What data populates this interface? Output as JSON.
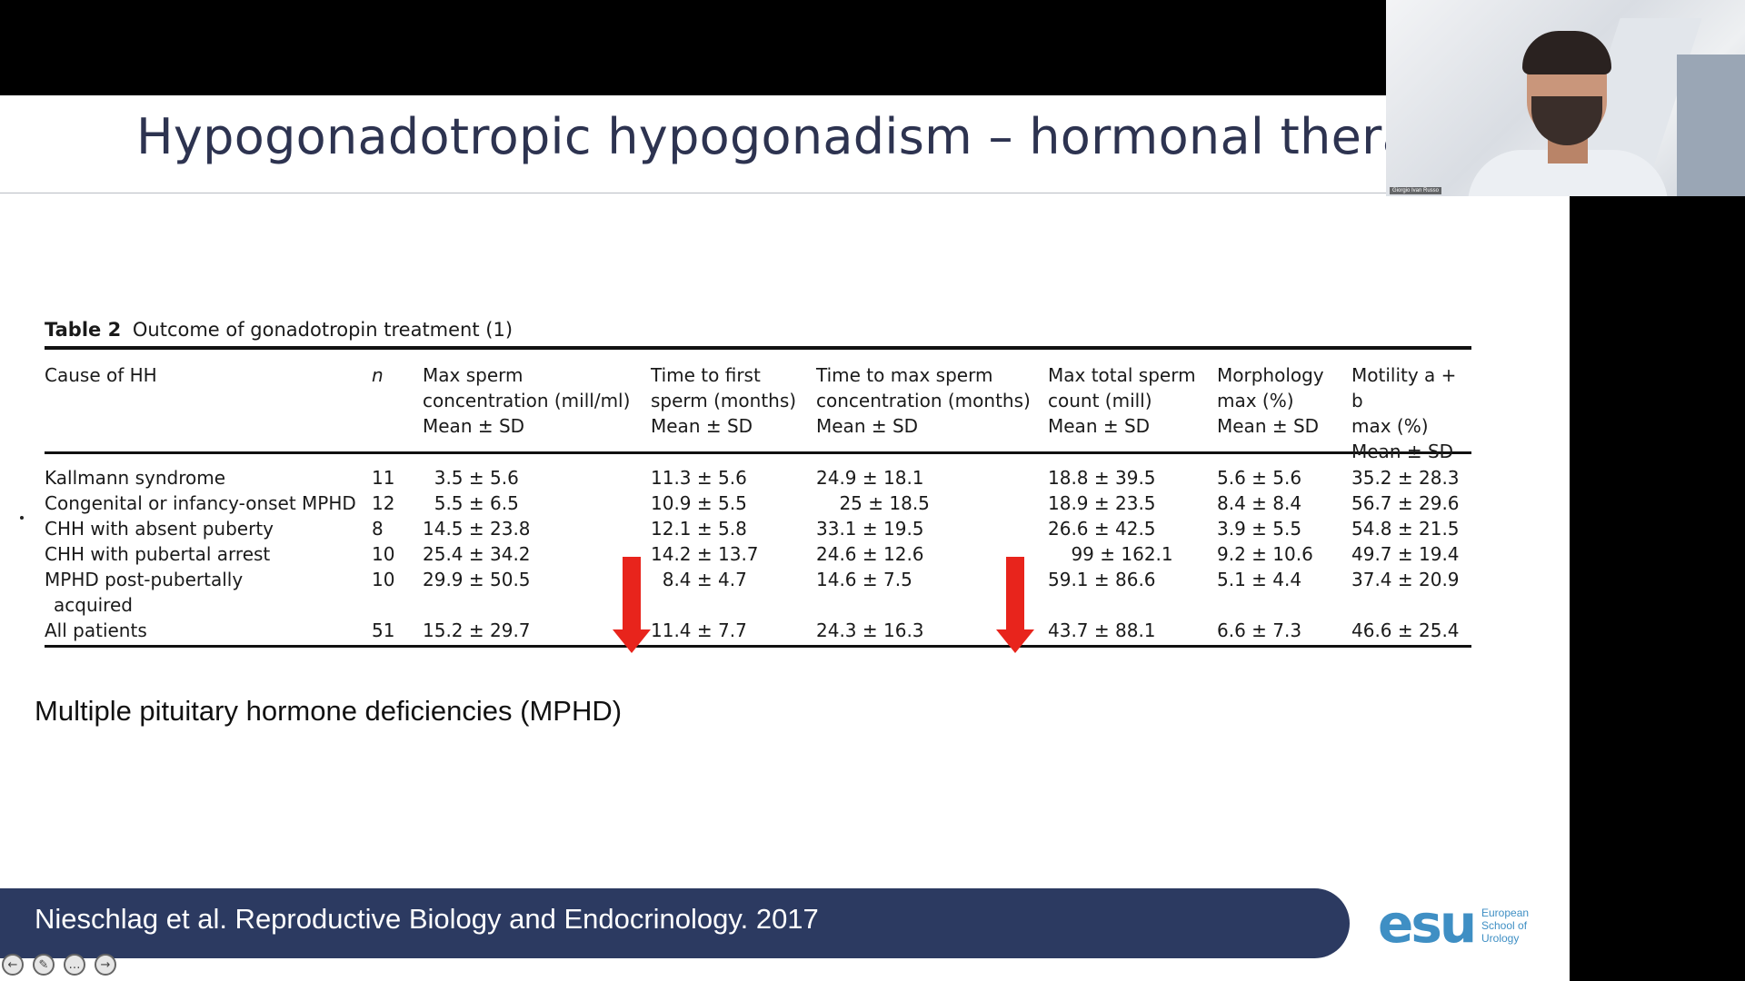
{
  "slide": {
    "title": "Hypogonadotropic hypogonadism – hormonal therap",
    "note": "Multiple pituitary hormone deficiencies (MPHD)",
    "citation": "Nieschlag et al. Reproductive Biology and Endocrinology. 2017"
  },
  "table": {
    "caption_label": "Table 2",
    "caption_text": "Outcome of gonadotropin treatment (1)",
    "headers": [
      [
        "Cause of HH"
      ],
      [
        "n"
      ],
      [
        "Max sperm",
        "concentration (mill/ml)",
        "Mean ± SD"
      ],
      [
        "Time to first",
        "sperm (months)",
        "Mean ± SD"
      ],
      [
        "Time to max sperm",
        "concentration (months)",
        "Mean ± SD"
      ],
      [
        "Max total sperm",
        "count (mill)",
        "Mean ± SD"
      ],
      [
        "Morphology",
        "max (%)",
        "Mean ± SD"
      ],
      [
        "Motility a + b",
        "max (%)",
        "Mean ± SD"
      ]
    ],
    "rows": [
      [
        "Kallmann syndrome",
        "11",
        " 3.5 ± 5.6",
        "11.3 ± 5.6",
        "24.9 ± 18.1",
        "18.8 ± 39.5",
        "5.6 ± 5.6",
        "35.2 ± 28.3"
      ],
      [
        "Congenital or infancy-onset MPHD",
        "12",
        " 5.5 ± 6.5",
        "10.9 ± 5.5",
        "  25 ± 18.5",
        "18.9 ± 23.5",
        "8.4 ± 8.4",
        "56.7 ± 29.6"
      ],
      [
        "CHH with absent puberty",
        "8",
        "14.5 ± 23.8",
        "12.1 ± 5.8",
        "33.1 ± 19.5",
        "26.6 ± 42.5",
        "3.9 ± 5.5",
        "54.8 ± 21.5"
      ],
      [
        "CHH with pubertal arrest",
        "10",
        "25.4 ± 34.2",
        "14.2 ± 13.7",
        "24.6 ± 12.6",
        "  99 ± 162.1",
        "9.2 ± 10.6",
        "49.7 ± 19.4"
      ],
      [
        "MPHD post-pubertally",
        "10",
        "29.9 ± 50.5",
        " 8.4 ± 4.7",
        "14.6 ± 7.5",
        "59.1 ± 86.6",
        "5.1 ± 4.4",
        "37.4 ± 20.9"
      ],
      [
        " acquired",
        "",
        "",
        "",
        "",
        "",
        "",
        ""
      ],
      [
        "All patients",
        "51",
        "15.2 ± 29.7",
        "11.4 ± 7.7",
        "24.3 ± 16.3",
        "43.7 ± 88.1",
        "6.6 ± 7.3",
        "46.6 ± 25.4"
      ]
    ]
  },
  "logo": {
    "mark": "esu",
    "line1": "European",
    "line2": "School of",
    "line3": "Urology"
  },
  "controls": [
    {
      "name": "previous-slide-button",
      "glyph": "←"
    },
    {
      "name": "pen-tool-button",
      "glyph": "✎"
    },
    {
      "name": "more-options-button",
      "glyph": "…"
    },
    {
      "name": "next-slide-button",
      "glyph": "→"
    }
  ],
  "webcam": {
    "name_label": "Giorgio Ivan Russo"
  },
  "colors": {
    "title": "#2d3350",
    "citation_bar": "#2c3a61",
    "arrow": "#e8241c",
    "logo": "#3f8fc4"
  }
}
